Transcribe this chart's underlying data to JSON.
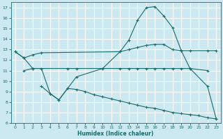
{
  "xlabel": "Humidex (Indice chaleur)",
  "bg_color": "#cce8f0",
  "grid_color": "#ffffff",
  "line_color": "#1a6b6b",
  "xlim": [
    -0.5,
    23.5
  ],
  "ylim": [
    6,
    17.5
  ],
  "xticks": [
    0,
    1,
    2,
    3,
    4,
    5,
    6,
    7,
    8,
    9,
    10,
    11,
    12,
    13,
    14,
    15,
    16,
    17,
    18,
    19,
    20,
    21,
    22,
    23
  ],
  "yticks": [
    6,
    7,
    8,
    9,
    10,
    11,
    12,
    13,
    14,
    15,
    16,
    17
  ],
  "curve1_x": [
    0,
    1,
    2,
    3,
    12,
    13,
    14,
    15,
    16,
    17,
    18,
    19,
    20,
    22,
    23
  ],
  "curve1_y": [
    12.8,
    12.2,
    12.5,
    12.7,
    12.8,
    13.0,
    13.2,
    13.4,
    13.5,
    13.5,
    13.0,
    12.9,
    12.9,
    12.9,
    12.9
  ],
  "curve2_x": [
    1,
    2,
    6,
    7,
    12,
    13,
    14,
    15,
    16,
    17,
    18,
    19,
    20,
    22
  ],
  "curve2_y": [
    11.0,
    11.2,
    11.2,
    11.2,
    11.2,
    11.2,
    11.2,
    11.2,
    11.2,
    11.2,
    11.2,
    11.2,
    11.2,
    11.0
  ],
  "curve3_x": [
    0,
    1,
    2,
    3,
    4,
    5,
    6,
    7,
    10,
    12,
    13,
    14,
    15,
    16,
    17,
    18,
    19,
    20,
    22,
    23
  ],
  "curve3_y": [
    12.8,
    12.2,
    11.2,
    11.2,
    8.8,
    8.2,
    9.3,
    10.4,
    11.2,
    12.8,
    13.9,
    15.8,
    17.0,
    17.1,
    16.2,
    15.1,
    12.9,
    11.2,
    9.5,
    6.4
  ],
  "curve4_x": [
    3,
    4,
    5,
    6,
    7,
    8,
    9,
    10,
    11,
    12,
    13,
    14,
    15,
    16,
    17,
    18,
    19,
    20,
    21,
    22,
    23
  ],
  "curve4_y": [
    9.5,
    8.8,
    8.2,
    9.3,
    9.2,
    9.0,
    8.7,
    8.5,
    8.3,
    8.1,
    7.9,
    7.7,
    7.5,
    7.4,
    7.2,
    7.0,
    6.9,
    6.8,
    6.7,
    6.5,
    6.4
  ]
}
